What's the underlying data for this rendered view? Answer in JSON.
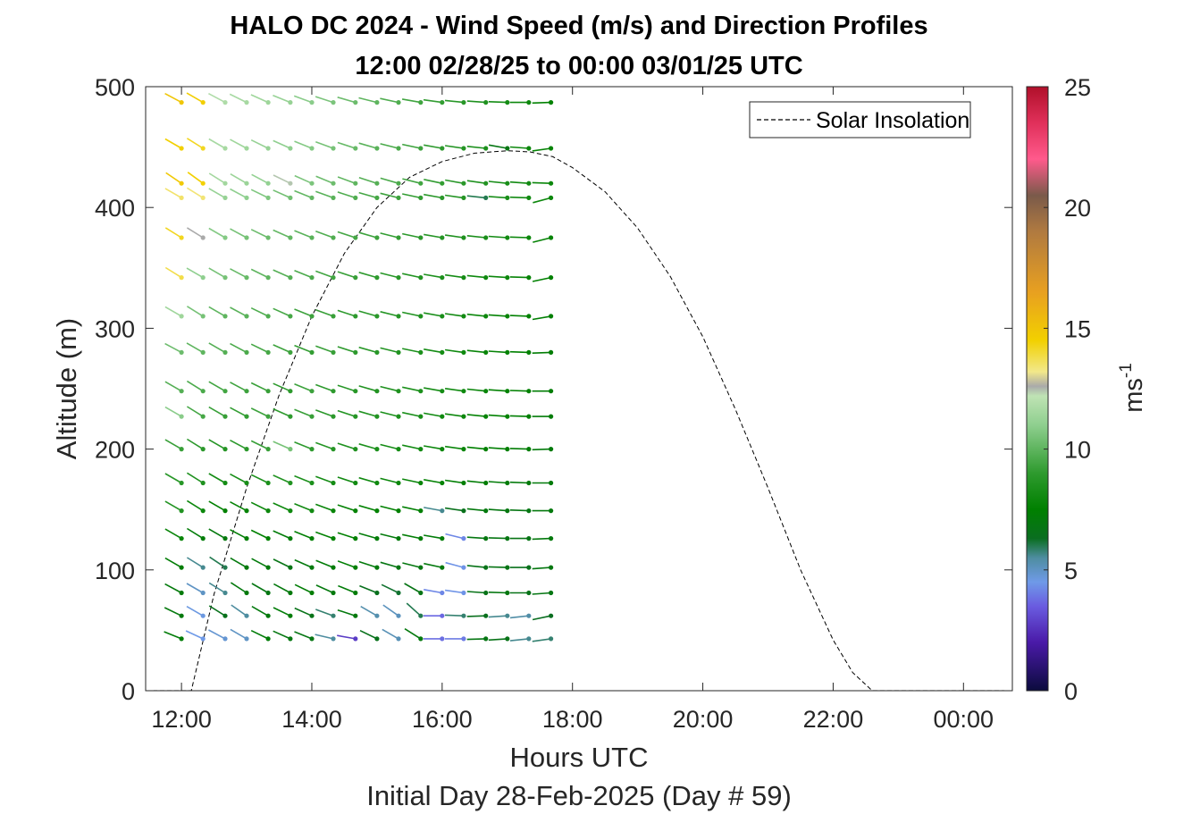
{
  "chart_data": {
    "type": "wind-barb-profile",
    "title": "HALO DC 2024 - Wind Speed (m/s) and Direction Profiles",
    "subtitle": "12:00 02/28/25 to 00:00 03/01/25  UTC",
    "xlabel": "Hours UTC",
    "xlabel2": "Initial Day 28-Feb-2025 (Day # 59)",
    "ylabel": "Altitude (m)",
    "xlim": [
      11.45,
      24.75
    ],
    "ylim": [
      0,
      500
    ],
    "x_ticks": [
      {
        "value": 12,
        "label": "12:00"
      },
      {
        "value": 14,
        "label": "14:00"
      },
      {
        "value": 16,
        "label": "16:00"
      },
      {
        "value": 18,
        "label": "18:00"
      },
      {
        "value": 20,
        "label": "20:00"
      },
      {
        "value": 22,
        "label": "22:00"
      },
      {
        "value": 24,
        "label": "00:00"
      }
    ],
    "y_ticks": [
      {
        "value": 0,
        "label": "0"
      },
      {
        "value": 100,
        "label": "100"
      },
      {
        "value": 200,
        "label": "200"
      },
      {
        "value": 300,
        "label": "300"
      },
      {
        "value": 400,
        "label": "400"
      },
      {
        "value": 500,
        "label": "500"
      }
    ],
    "colorbar": {
      "label": "ms",
      "label_exponent": "-1",
      "range": [
        0,
        25
      ],
      "ticks": [
        {
          "value": 0,
          "label": "0"
        },
        {
          "value": 5,
          "label": "5"
        },
        {
          "value": 10,
          "label": "10"
        },
        {
          "value": 15,
          "label": "15"
        },
        {
          "value": 20,
          "label": "20"
        },
        {
          "value": 25,
          "label": "25"
        }
      ],
      "stops": [
        {
          "value": 0,
          "color": "#0b0b3d"
        },
        {
          "value": 2,
          "color": "#4a1aa8"
        },
        {
          "value": 3.5,
          "color": "#6a5ce0"
        },
        {
          "value": 4.5,
          "color": "#6f9ae8"
        },
        {
          "value": 5.5,
          "color": "#4e8da0"
        },
        {
          "value": 6.3,
          "color": "#0a6e20"
        },
        {
          "value": 7.5,
          "color": "#008000"
        },
        {
          "value": 9,
          "color": "#2e9a2e"
        },
        {
          "value": 11,
          "color": "#8fcf8f"
        },
        {
          "value": 12.2,
          "color": "#bfe3b4"
        },
        {
          "value": 12.6,
          "color": "#aaaaaa"
        },
        {
          "value": 13.2,
          "color": "#f2e88a"
        },
        {
          "value": 14.5,
          "color": "#f2d000"
        },
        {
          "value": 16.5,
          "color": "#e8a020"
        },
        {
          "value": 19,
          "color": "#b07a40"
        },
        {
          "value": 20.5,
          "color": "#7a5a4a"
        },
        {
          "value": 22,
          "color": "#ff5a8c"
        },
        {
          "value": 23.5,
          "color": "#e0305a"
        },
        {
          "value": 25,
          "color": "#b0102a"
        }
      ]
    },
    "legend": {
      "position": "top-right",
      "entries": [
        {
          "label": "Solar Insolation",
          "style": "dashed",
          "color": "#000000"
        }
      ]
    },
    "solar_insolation": {
      "x": [
        11.45,
        12.15,
        12.5,
        13.0,
        13.5,
        14.0,
        14.5,
        15.0,
        15.5,
        16.0,
        16.5,
        17.0,
        17.35,
        17.7,
        18.0,
        18.5,
        19.0,
        19.5,
        20.0,
        20.5,
        21.0,
        21.5,
        22.0,
        22.3,
        22.6,
        24.75
      ],
      "y": [
        0,
        0,
        80,
        168,
        245,
        310,
        362,
        400,
        425,
        438,
        445,
        447,
        446,
        442,
        433,
        413,
        383,
        343,
        293,
        233,
        168,
        100,
        42,
        15,
        0,
        0
      ]
    },
    "wind": {
      "times": [
        12.0,
        12.33,
        12.67,
        13.0,
        13.33,
        13.67,
        14.0,
        14.33,
        14.67,
        15.0,
        15.33,
        15.67,
        16.0,
        16.33,
        16.67,
        17.0,
        17.33,
        17.67
      ],
      "altitudes": [
        43,
        62,
        81,
        102,
        126,
        149,
        172,
        200,
        227,
        248,
        280,
        310,
        342,
        375,
        408,
        420,
        449,
        487
      ],
      "speeds": [
        [
          7.2,
          4.5,
          4.8,
          5.0,
          7.2,
          6.9,
          6.8,
          5.5,
          2.8,
          6.5,
          5.2,
          7.0,
          3.8,
          4.0,
          6.8,
          6.6,
          5.6,
          5.8
        ],
        [
          7.0,
          4.6,
          6.5,
          5.5,
          7.0,
          7.2,
          6.6,
          5.8,
          7.0,
          5.3,
          5.1,
          6.0,
          3.7,
          5.8,
          6.4,
          5.6,
          5.4,
          6.3
        ],
        [
          7.1,
          5.0,
          5.6,
          7.0,
          6.8,
          7.0,
          7.3,
          7.0,
          7.2,
          6.4,
          6.2,
          6.7,
          4.2,
          4.4,
          6.6,
          6.9,
          6.6,
          6.8
        ],
        [
          7.3,
          5.6,
          6.0,
          7.0,
          7.1,
          6.7,
          7.0,
          7.2,
          7.4,
          7.1,
          6.8,
          6.9,
          7.0,
          4.4,
          6.6,
          6.7,
          6.5,
          6.9
        ],
        [
          7.8,
          7.2,
          7.0,
          7.3,
          7.5,
          7.2,
          7.4,
          7.6,
          7.5,
          7.2,
          7.1,
          7.3,
          7.2,
          4.2,
          6.9,
          6.8,
          6.7,
          7.0
        ],
        [
          8.6,
          7.9,
          7.5,
          7.7,
          7.9,
          8.0,
          8.1,
          7.8,
          7.7,
          7.6,
          7.5,
          7.4,
          5.6,
          6.5,
          7.0,
          6.9,
          6.8,
          7.0
        ],
        [
          8.8,
          8.5,
          8.2,
          8.3,
          8.4,
          8.6,
          8.4,
          8.2,
          8.1,
          8.0,
          7.9,
          7.8,
          7.7,
          7.4,
          7.3,
          7.2,
          7.1,
          7.1
        ],
        [
          9.2,
          8.9,
          8.7,
          8.9,
          9.2,
          10.5,
          9.0,
          8.7,
          8.5,
          8.4,
          8.2,
          8.1,
          7.9,
          7.8,
          7.5,
          7.4,
          7.3,
          7.1
        ],
        [
          10.9,
          9.5,
          9.2,
          9.1,
          9.3,
          9.0,
          9.2,
          8.9,
          8.7,
          8.6,
          8.4,
          8.3,
          8.0,
          7.9,
          7.7,
          7.6,
          7.4,
          7.2
        ],
        [
          9.8,
          9.6,
          9.4,
          9.3,
          9.2,
          9.0,
          9.3,
          9.0,
          8.8,
          8.6,
          8.5,
          8.4,
          8.2,
          8.0,
          7.8,
          7.6,
          7.5,
          7.3
        ],
        [
          10.3,
          10.0,
          9.8,
          9.6,
          9.5,
          9.3,
          9.1,
          9.2,
          9.0,
          8.8,
          8.6,
          8.4,
          8.2,
          8.0,
          7.8,
          7.7,
          7.5,
          7.3
        ],
        [
          11.4,
          10.5,
          10.0,
          9.9,
          9.7,
          9.5,
          9.3,
          9.2,
          9.0,
          8.9,
          8.7,
          8.5,
          8.3,
          8.1,
          7.9,
          7.7,
          7.6,
          7.4
        ],
        [
          13.8,
          11.0,
          10.5,
          10.2,
          10.0,
          9.8,
          9.6,
          9.4,
          9.2,
          9.0,
          8.8,
          8.6,
          8.4,
          8.2,
          8.0,
          7.9,
          7.7,
          7.5
        ],
        [
          14.2,
          12.6,
          10.8,
          10.5,
          10.3,
          10.1,
          9.9,
          9.7,
          9.5,
          9.3,
          9.1,
          8.9,
          8.7,
          8.5,
          8.3,
          8.1,
          7.9,
          7.7
        ],
        [
          13.5,
          13.4,
          11.2,
          11.0,
          10.7,
          10.4,
          10.1,
          9.9,
          9.7,
          9.5,
          9.3,
          9.1,
          8.9,
          8.7,
          6.0,
          8.3,
          8.1,
          7.9
        ],
        [
          14.8,
          14.5,
          11.5,
          11.3,
          11.1,
          12.4,
          10.6,
          10.3,
          10.0,
          9.8,
          9.6,
          9.4,
          9.1,
          8.9,
          8.6,
          8.3,
          8.1,
          7.9
        ],
        [
          14.5,
          14.2,
          11.6,
          11.4,
          11.2,
          11.0,
          10.8,
          10.5,
          10.2,
          9.9,
          9.6,
          9.3,
          9.0,
          8.7,
          8.4,
          6.8,
          7.9,
          7.7
        ],
        [
          14.9,
          14.6,
          11.8,
          11.6,
          11.4,
          11.2,
          10.9,
          10.6,
          10.3,
          10.0,
          9.7,
          9.4,
          9.1,
          8.8,
          8.5,
          8.2,
          7.9,
          7.6
        ]
      ],
      "directions": [
        [
          292,
          295,
          298,
          300,
          296,
          294,
          292,
          283,
          280,
          296,
          300,
          302,
          270,
          270,
          268,
          266,
          264,
          262
        ],
        [
          296,
          300,
          302,
          305,
          300,
          296,
          294,
          290,
          288,
          300,
          305,
          312,
          270,
          272,
          268,
          266,
          264,
          258
        ],
        [
          298,
          300,
          302,
          303,
          300,
          298,
          296,
          294,
          292,
          292,
          296,
          300,
          280,
          278,
          274,
          272,
          270,
          266
        ],
        [
          300,
          302,
          304,
          300,
          298,
          296,
          294,
          292,
          290,
          288,
          286,
          284,
          282,
          285,
          276,
          272,
          270,
          266
        ],
        [
          300,
          302,
          300,
          298,
          296,
          294,
          292,
          290,
          288,
          286,
          284,
          282,
          280,
          284,
          274,
          272,
          270,
          268
        ],
        [
          300,
          302,
          300,
          298,
          296,
          294,
          292,
          290,
          288,
          286,
          284,
          282,
          280,
          278,
          276,
          274,
          272,
          270
        ],
        [
          300,
          302,
          300,
          298,
          296,
          294,
          292,
          290,
          288,
          286,
          284,
          282,
          280,
          278,
          276,
          274,
          272,
          270
        ],
        [
          300,
          302,
          300,
          298,
          296,
          294,
          292,
          290,
          288,
          286,
          284,
          282,
          280,
          278,
          276,
          274,
          272,
          268
        ],
        [
          300,
          302,
          300,
          298,
          296,
          294,
          292,
          290,
          288,
          286,
          284,
          282,
          280,
          278,
          276,
          274,
          272,
          270
        ],
        [
          300,
          302,
          300,
          298,
          296,
          294,
          292,
          290,
          288,
          286,
          284,
          282,
          280,
          278,
          276,
          274,
          272,
          270
        ],
        [
          298,
          300,
          300,
          298,
          296,
          294,
          292,
          290,
          288,
          286,
          284,
          282,
          280,
          278,
          276,
          274,
          272,
          268
        ],
        [
          300,
          302,
          300,
          298,
          296,
          294,
          292,
          290,
          288,
          286,
          284,
          282,
          280,
          278,
          276,
          274,
          272,
          260
        ],
        [
          302,
          300,
          300,
          298,
          296,
          294,
          292,
          290,
          288,
          286,
          284,
          282,
          280,
          278,
          276,
          274,
          272,
          258
        ],
        [
          302,
          302,
          300,
          298,
          296,
          294,
          292,
          290,
          288,
          286,
          284,
          282,
          280,
          278,
          276,
          274,
          272,
          256
        ],
        [
          300,
          302,
          300,
          298,
          296,
          294,
          292,
          290,
          288,
          286,
          284,
          282,
          280,
          278,
          276,
          274,
          272,
          255
        ],
        [
          304,
          306,
          302,
          300,
          298,
          296,
          294,
          292,
          290,
          288,
          286,
          284,
          282,
          280,
          278,
          276,
          274,
          272
        ],
        [
          300,
          302,
          300,
          298,
          296,
          294,
          292,
          290,
          288,
          286,
          284,
          282,
          280,
          278,
          276,
          280,
          274,
          262
        ],
        [
          298,
          300,
          298,
          296,
          294,
          292,
          290,
          288,
          286,
          284,
          282,
          280,
          278,
          276,
          274,
          272,
          270,
          268
        ]
      ]
    }
  }
}
